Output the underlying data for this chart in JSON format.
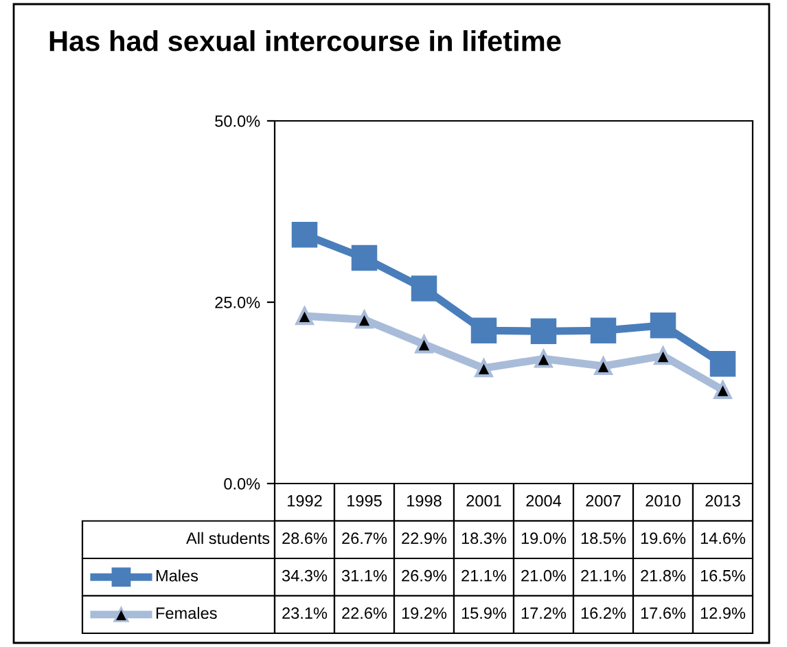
{
  "chart_data": {
    "type": "line",
    "title": "Has had sexual intercourse in lifetime",
    "categories": [
      "1992",
      "1995",
      "1998",
      "2001",
      "2004",
      "2007",
      "2010",
      "2013"
    ],
    "annotations": [
      "All students",
      "28.6%",
      "26.7%",
      "22.9%",
      "18.3%",
      "19.0%",
      "18.5%",
      "19.6%",
      "14.6%"
    ],
    "series": [
      {
        "name": "Males",
        "color": "#4a7ebb",
        "marker": "square",
        "values": [
          34.3,
          31.1,
          26.9,
          21.1,
          21.0,
          21.1,
          21.8,
          16.5
        ],
        "value_labels": [
          "34.3%",
          "31.1%",
          "26.9%",
          "21.1%",
          "21.0%",
          "21.1%",
          "21.8%",
          "16.5%"
        ]
      },
      {
        "name": "Females",
        "color": "#a8bcd9",
        "marker": "triangle",
        "values": [
          23.1,
          22.6,
          19.2,
          15.9,
          17.2,
          16.2,
          17.6,
          12.9
        ],
        "value_labels": [
          "23.1%",
          "22.6%",
          "19.2%",
          "15.9%",
          "17.2%",
          "16.2%",
          "17.6%",
          "12.9%"
        ]
      }
    ],
    "ylim": [
      0,
      50
    ],
    "yticks": [
      {
        "value": 0,
        "label": "0.0%"
      },
      {
        "value": 25,
        "label": "25.0%"
      },
      {
        "value": 50,
        "label": "50.0%"
      }
    ],
    "grid": false,
    "legend": "bottom",
    "line_style": "solid"
  }
}
